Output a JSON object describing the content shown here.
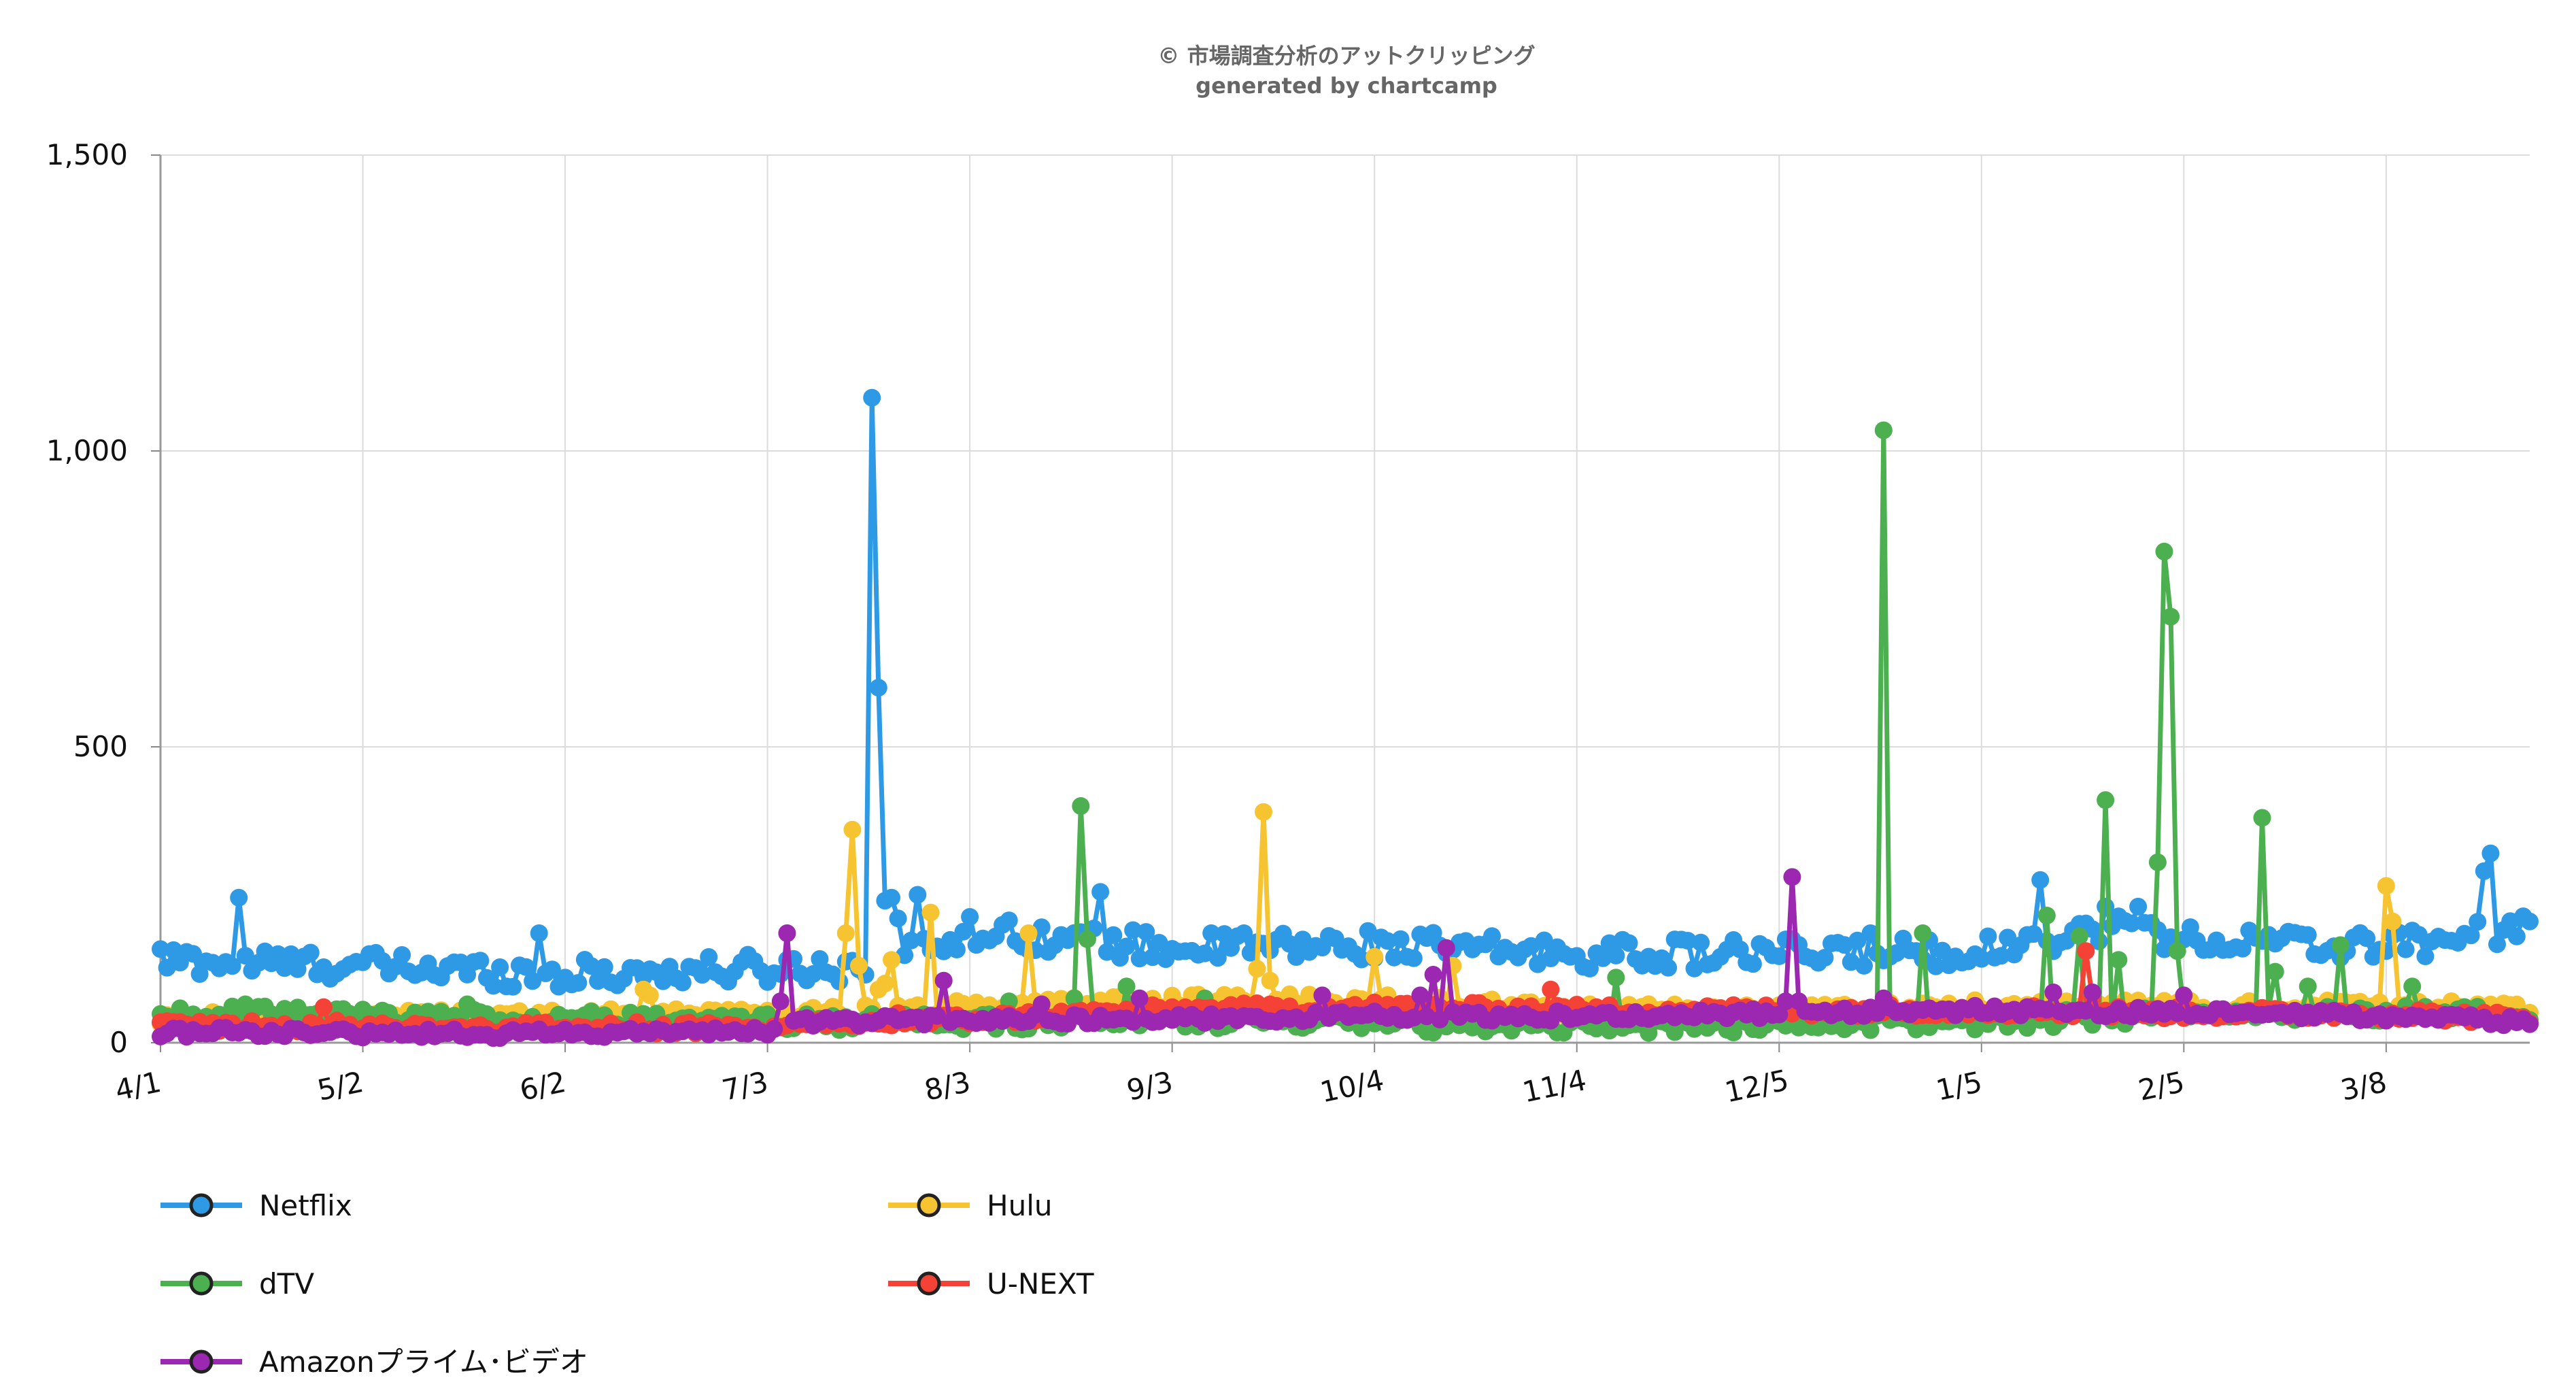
{
  "chart_data": {
    "type": "line",
    "title": "© 市場調査分析のアットクリッピング",
    "subtitle": "generated by chartcamp",
    "xlabel": "",
    "ylabel": "",
    "ylim": [
      0,
      1500
    ],
    "y_ticks": [
      0,
      500,
      1000,
      1500
    ],
    "y_tick_labels": [
      "0",
      "500",
      "1,000",
      "1,500"
    ],
    "x_domain": [
      0,
      363
    ],
    "x_ticks": [
      {
        "label": "4/1",
        "day": 0
      },
      {
        "label": "5/2",
        "day": 31
      },
      {
        "label": "6/2",
        "day": 62
      },
      {
        "label": "7/3",
        "day": 93
      },
      {
        "label": "8/3",
        "day": 124
      },
      {
        "label": "9/3",
        "day": 155
      },
      {
        "label": "10/4",
        "day": 186
      },
      {
        "label": "11/4",
        "day": 217
      },
      {
        "label": "12/5",
        "day": 248
      },
      {
        "label": "1/5",
        "day": 279
      },
      {
        "label": "2/5",
        "day": 310
      },
      {
        "label": "3/8",
        "day": 341
      }
    ],
    "grid": true,
    "legend_position": "bottom",
    "series": [
      {
        "name": "Netflix",
        "color": "#2e9ae6",
        "base": [
          [
            0,
            140
          ],
          [
            31,
            130
          ],
          [
            62,
            115
          ],
          [
            93,
            125
          ],
          [
            110,
            130
          ],
          [
            124,
            190
          ],
          [
            155,
            160
          ],
          [
            186,
            165
          ],
          [
            217,
            150
          ],
          [
            248,
            150
          ],
          [
            279,
            155
          ],
          [
            300,
            200
          ],
          [
            310,
            175
          ],
          [
            341,
            160
          ],
          [
            363,
            200
          ]
        ],
        "noise": 25,
        "spikes": [
          [
            12,
            245
          ],
          [
            58,
            185
          ],
          [
            108,
            115
          ],
          [
            109,
            1090
          ],
          [
            110,
            600
          ],
          [
            111,
            240
          ],
          [
            112,
            245
          ],
          [
            113,
            210
          ],
          [
            116,
            250
          ],
          [
            144,
            255
          ],
          [
            166,
            185
          ],
          [
            262,
            185
          ],
          [
            288,
            275
          ],
          [
            298,
            230
          ],
          [
            303,
            230
          ],
          [
            341,
            155
          ],
          [
            356,
            290
          ],
          [
            357,
            320
          ],
          [
            363,
            205
          ]
        ]
      },
      {
        "name": "Hulu",
        "color": "#f7c431",
        "base": [
          [
            0,
            40
          ],
          [
            62,
            45
          ],
          [
            93,
            50
          ],
          [
            124,
            60
          ],
          [
            155,
            70
          ],
          [
            186,
            70
          ],
          [
            217,
            55
          ],
          [
            248,
            55
          ],
          [
            279,
            60
          ],
          [
            310,
            60
          ],
          [
            363,
            60
          ]
        ],
        "noise": 12,
        "spikes": [
          [
            74,
            90
          ],
          [
            75,
            80
          ],
          [
            105,
            185
          ],
          [
            106,
            360
          ],
          [
            107,
            130
          ],
          [
            110,
            90
          ],
          [
            111,
            100
          ],
          [
            112,
            140
          ],
          [
            118,
            220
          ],
          [
            133,
            185
          ],
          [
            168,
            125
          ],
          [
            169,
            390
          ],
          [
            170,
            105
          ],
          [
            186,
            145
          ],
          [
            198,
            130
          ],
          [
            292,
            70
          ],
          [
            341,
            265
          ],
          [
            342,
            205
          ]
        ]
      },
      {
        "name": "dTV",
        "color": "#4caf50",
        "base": [
          [
            0,
            50
          ],
          [
            62,
            40
          ],
          [
            93,
            35
          ],
          [
            124,
            35
          ],
          [
            155,
            40
          ],
          [
            186,
            30
          ],
          [
            217,
            30
          ],
          [
            248,
            30
          ],
          [
            279,
            35
          ],
          [
            310,
            50
          ],
          [
            341,
            50
          ],
          [
            363,
            45
          ]
        ],
        "noise": 14,
        "spikes": [
          [
            13,
            65
          ],
          [
            47,
            65
          ],
          [
            130,
            70
          ],
          [
            140,
            75
          ],
          [
            141,
            400
          ],
          [
            142,
            175
          ],
          [
            148,
            95
          ],
          [
            160,
            75
          ],
          [
            223,
            110
          ],
          [
            264,
            1035
          ],
          [
            270,
            185
          ],
          [
            289,
            215
          ],
          [
            294,
            180
          ],
          [
            298,
            410
          ],
          [
            300,
            140
          ],
          [
            306,
            305
          ],
          [
            307,
            830
          ],
          [
            308,
            720
          ],
          [
            309,
            155
          ],
          [
            322,
            380
          ],
          [
            324,
            120
          ],
          [
            329,
            95
          ],
          [
            334,
            165
          ],
          [
            345,
            95
          ]
        ]
      },
      {
        "name": "U-NEXT",
        "color": "#f44336",
        "base": [
          [
            0,
            30
          ],
          [
            62,
            25
          ],
          [
            93,
            25
          ],
          [
            124,
            40
          ],
          [
            155,
            55
          ],
          [
            186,
            60
          ],
          [
            217,
            55
          ],
          [
            248,
            55
          ],
          [
            279,
            55
          ],
          [
            310,
            50
          ],
          [
            341,
            50
          ],
          [
            363,
            40
          ]
        ],
        "noise": 10,
        "spikes": [
          [
            25,
            60
          ],
          [
            113,
            50
          ],
          [
            213,
            90
          ],
          [
            295,
            155
          ],
          [
            296,
            75
          ]
        ]
      },
      {
        "name": "Amazonプライム･ビデオ",
        "color": "#9c27b0",
        "base": [
          [
            0,
            18
          ],
          [
            62,
            15
          ],
          [
            93,
            20
          ],
          [
            98,
            35
          ],
          [
            124,
            40
          ],
          [
            155,
            40
          ],
          [
            186,
            45
          ],
          [
            217,
            45
          ],
          [
            248,
            50
          ],
          [
            279,
            55
          ],
          [
            310,
            50
          ],
          [
            341,
            45
          ],
          [
            363,
            35
          ]
        ],
        "noise": 8,
        "spikes": [
          [
            95,
            70
          ],
          [
            96,
            185
          ],
          [
            120,
            105
          ],
          [
            135,
            65
          ],
          [
            150,
            75
          ],
          [
            178,
            80
          ],
          [
            193,
            80
          ],
          [
            195,
            115
          ],
          [
            197,
            160
          ],
          [
            249,
            70
          ],
          [
            250,
            280
          ],
          [
            251,
            70
          ],
          [
            264,
            75
          ],
          [
            290,
            85
          ],
          [
            296,
            85
          ],
          [
            310,
            80
          ]
        ]
      }
    ]
  },
  "legend": [
    {
      "label": "Netflix",
      "color": "#2e9ae6"
    },
    {
      "label": "Hulu",
      "color": "#f7c431"
    },
    {
      "label": "dTV",
      "color": "#4caf50"
    },
    {
      "label": "U-NEXT",
      "color": "#f44336"
    },
    {
      "label": "Amazonプライム･ビデオ",
      "color": "#9c27b0"
    }
  ],
  "colors": {
    "grid": "#dcdcdc",
    "axis": "#888888",
    "title": "#666666",
    "text": "#111111"
  }
}
